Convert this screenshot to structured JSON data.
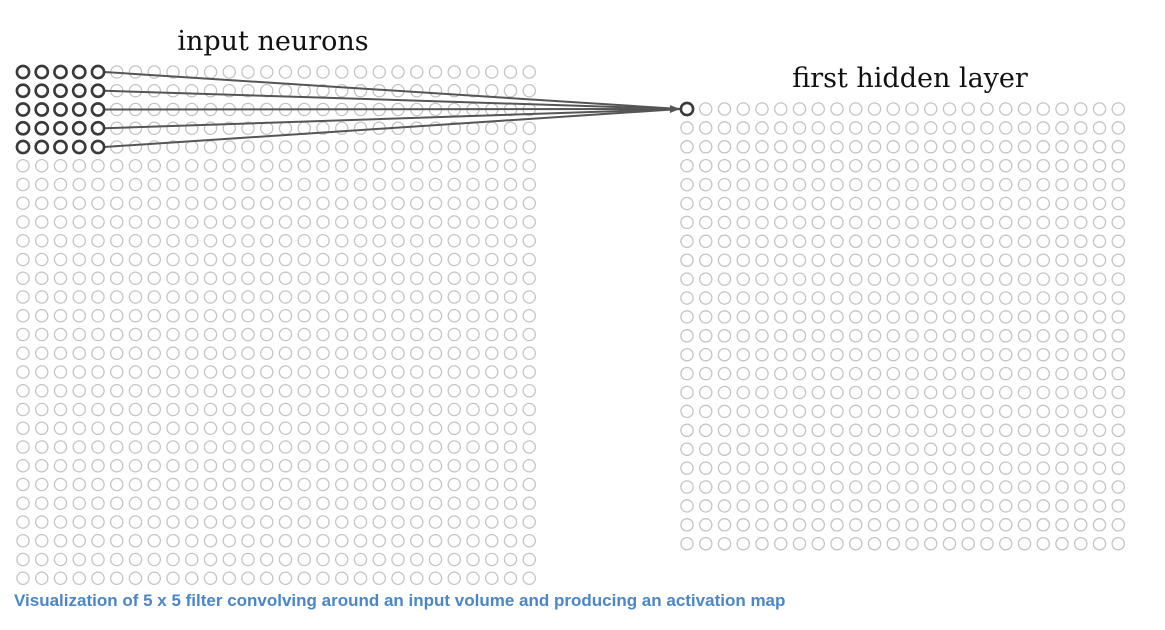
{
  "diagram": {
    "input_layer": {
      "title": "input neurons",
      "rows": 28,
      "cols": 28
    },
    "hidden_layer": {
      "title": "first hidden layer",
      "rows": 24,
      "cols": 24
    },
    "receptive_field": {
      "rows": 5,
      "cols": 5
    },
    "caption": "Visualization of 5 x 5 filter convolving around an input  volume and producing  an activation map",
    "colors": {
      "neuron_idle": "#c4c4c4",
      "neuron_active": "#3a3a3a",
      "connection": "#555555",
      "caption": "#4a86c8"
    }
  }
}
